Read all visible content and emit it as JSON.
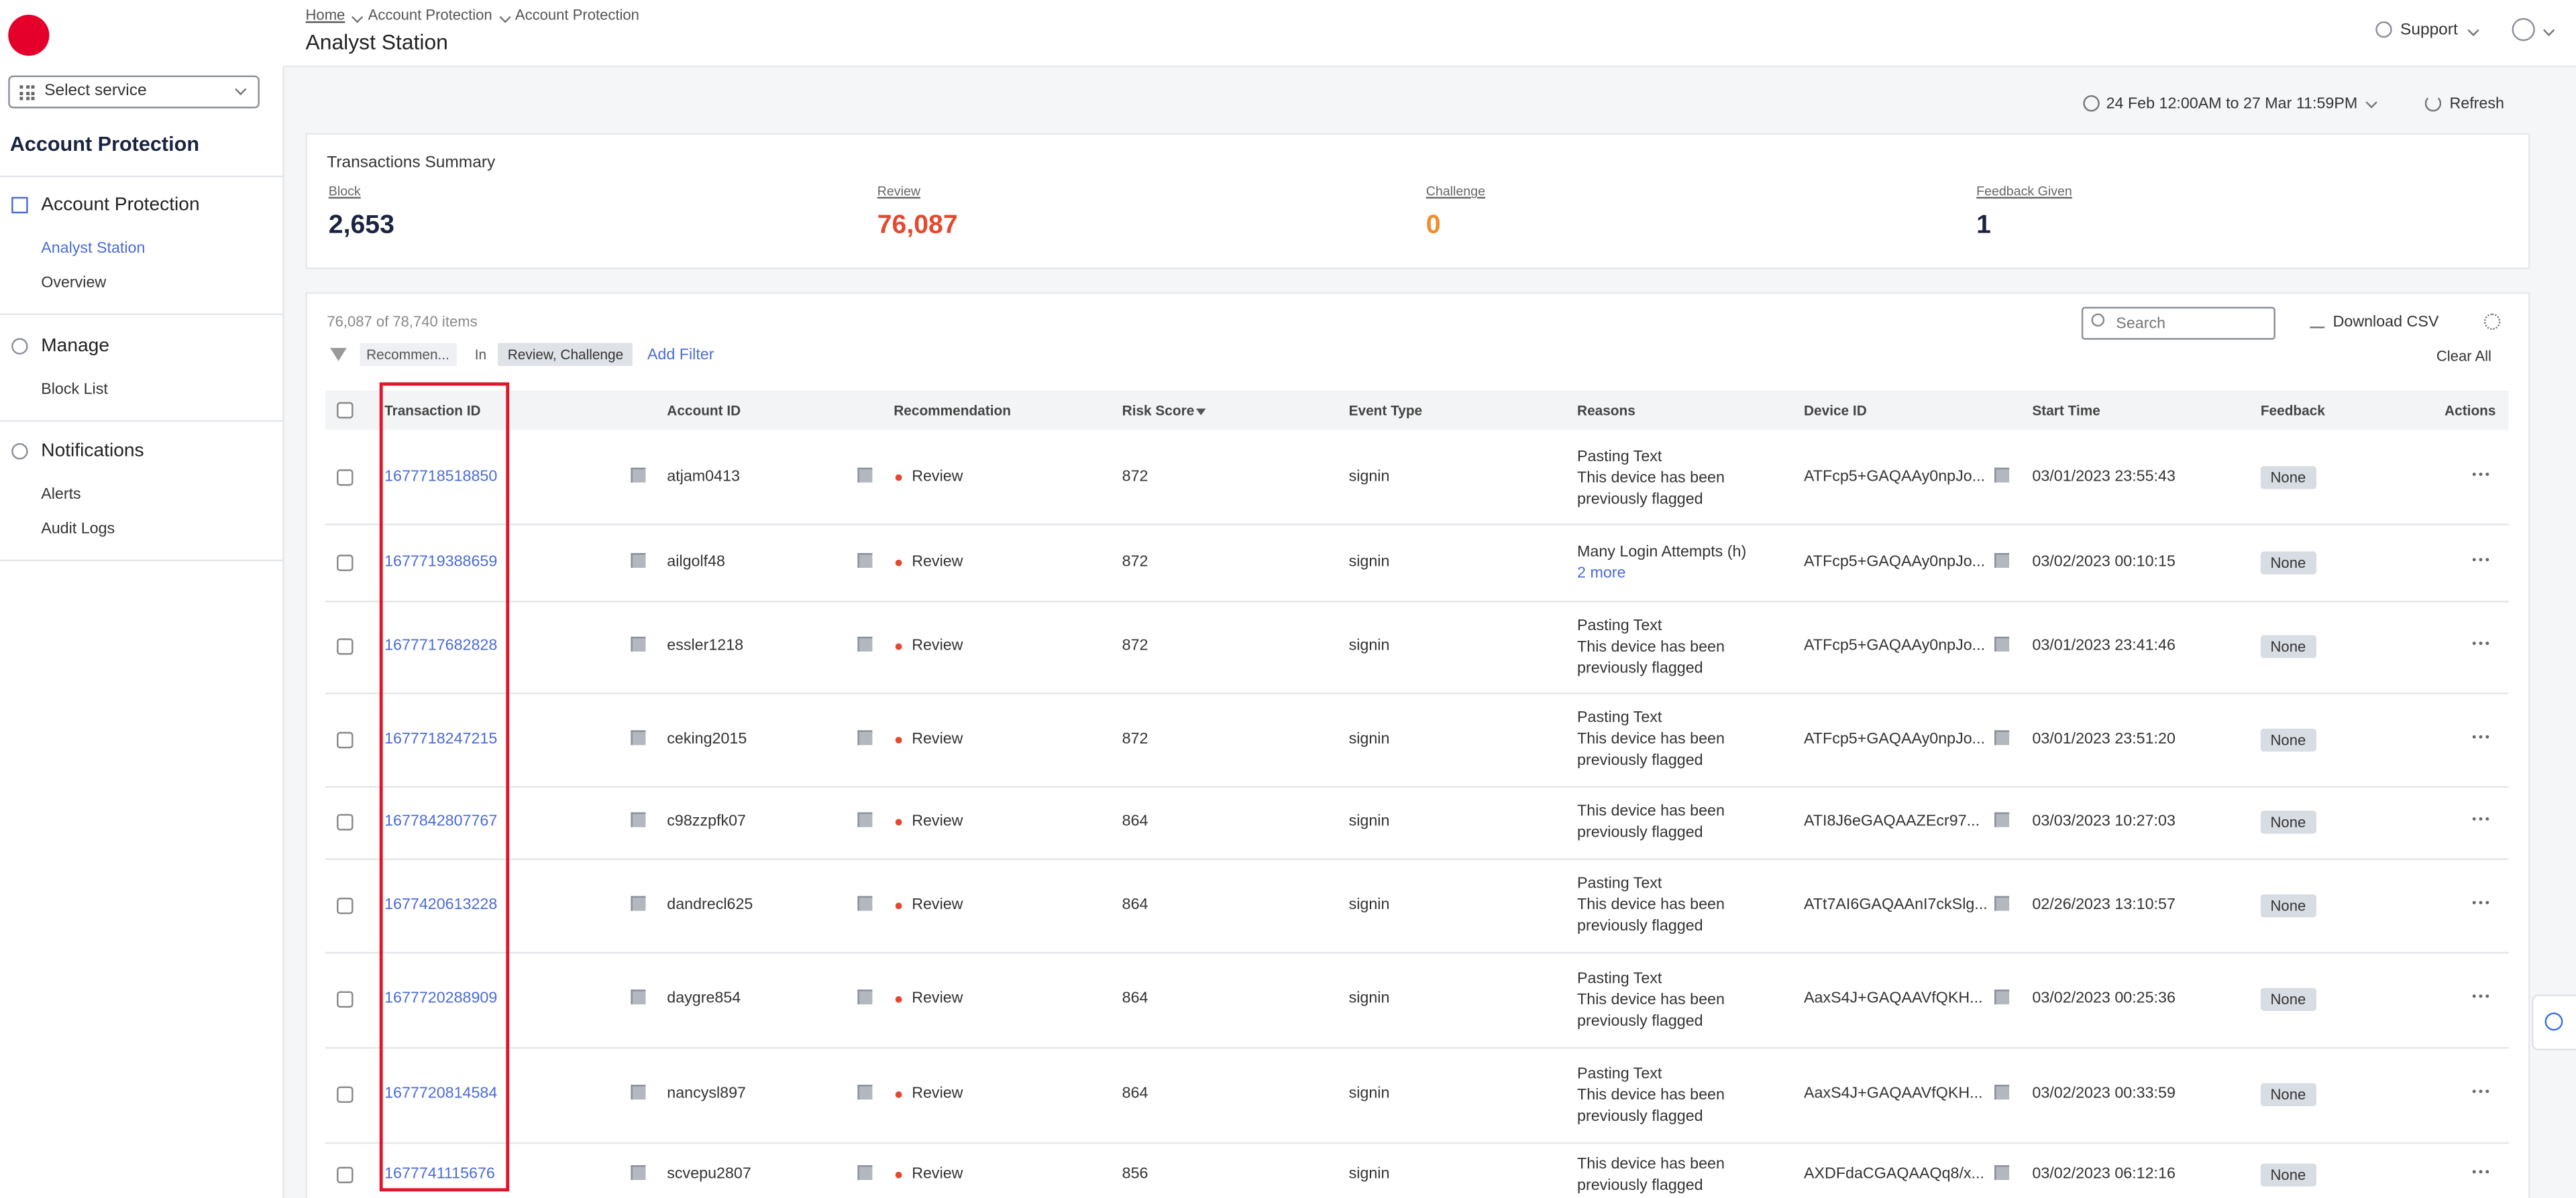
{
  "header": {
    "breadcrumbs": [
      "Home",
      "Account Protection",
      "Account Protection"
    ],
    "title": "Analyst Station",
    "support": "Support"
  },
  "sidebar": {
    "service_select": "Select service",
    "section_title": "Account Protection",
    "groups": [
      {
        "label": "Account Protection",
        "items": [
          "Analyst Station",
          "Overview"
        ]
      },
      {
        "label": "Manage",
        "items": [
          "Block List"
        ]
      },
      {
        "label": "Notifications",
        "items": [
          "Alerts",
          "Audit Logs"
        ]
      }
    ]
  },
  "toolbar": {
    "date_range": "24 Feb 12:00AM to 27 Mar 11:59PM",
    "refresh": "Refresh"
  },
  "summary": {
    "title": "Transactions Summary",
    "metrics": [
      {
        "label": "Block",
        "value": "2,653"
      },
      {
        "label": "Review",
        "value": "76,087"
      },
      {
        "label": "Challenge",
        "value": "0"
      },
      {
        "label": "Feedback Given",
        "value": "1"
      }
    ]
  },
  "table": {
    "count": "76,087 of 78,740 items",
    "filter": {
      "field": "Recommen...",
      "operator": "In",
      "value": "Review, Challenge"
    },
    "add_filter": "Add Filter",
    "search_placeholder": "Search",
    "download": "Download CSV",
    "clear_all": "Clear All",
    "columns": [
      "Transaction ID",
      "Account ID",
      "Recommendation",
      "Risk Score",
      "Event Type",
      "Reasons",
      "Device ID",
      "Start Time",
      "Feedback",
      "Actions"
    ],
    "rows": [
      {
        "transaction_id": "1677718518850",
        "account_id": "atjam0413",
        "recommendation": "Review",
        "risk_score": "872",
        "event_type": "signin",
        "reasons": [
          "Pasting Text",
          "This device has been previously flagged"
        ],
        "device_id": "ATFcp5+GAQAAy0npJo...",
        "start_time": "03/01/2023 23:55:43",
        "feedback": "None"
      },
      {
        "transaction_id": "1677719388659",
        "account_id": "ailgolf48",
        "recommendation": "Review",
        "risk_score": "872",
        "event_type": "signin",
        "reasons": [
          "Many Login Attempts (h)"
        ],
        "more": "2 more",
        "device_id": "ATFcp5+GAQAAy0npJo...",
        "start_time": "03/02/2023 00:10:15",
        "feedback": "None"
      },
      {
        "transaction_id": "1677717682828",
        "account_id": "essler1218",
        "recommendation": "Review",
        "risk_score": "872",
        "event_type": "signin",
        "reasons": [
          "Pasting Text",
          "This device has been previously flagged"
        ],
        "device_id": "ATFcp5+GAQAAy0npJo...",
        "start_time": "03/01/2023 23:41:46",
        "feedback": "None"
      },
      {
        "transaction_id": "1677718247215",
        "account_id": "ceking2015",
        "recommendation": "Review",
        "risk_score": "872",
        "event_type": "signin",
        "reasons": [
          "Pasting Text",
          "This device has been previously flagged"
        ],
        "device_id": "ATFcp5+GAQAAy0npJo...",
        "start_time": "03/01/2023 23:51:20",
        "feedback": "None"
      },
      {
        "transaction_id": "1677842807767",
        "account_id": "c98zzpfk07",
        "recommendation": "Review",
        "risk_score": "864",
        "event_type": "signin",
        "reasons": [
          "This device has been previously flagged"
        ],
        "device_id": "ATI8J6eGAQAAZEcr97...",
        "start_time": "03/03/2023 10:27:03",
        "feedback": "None"
      },
      {
        "transaction_id": "1677420613228",
        "account_id": "dandrecl625",
        "recommendation": "Review",
        "risk_score": "864",
        "event_type": "signin",
        "reasons": [
          "Pasting Text",
          "This device has been previously flagged"
        ],
        "device_id": "ATt7AI6GAQAAnI7ckSlg...",
        "start_time": "02/26/2023 13:10:57",
        "feedback": "None"
      },
      {
        "transaction_id": "1677720288909",
        "account_id": "daygre854",
        "recommendation": "Review",
        "risk_score": "864",
        "event_type": "signin",
        "reasons": [
          "Pasting Text",
          "This device has been previously flagged"
        ],
        "device_id": "AaxS4J+GAQAAVfQKH...",
        "start_time": "03/02/2023 00:25:36",
        "feedback": "None"
      },
      {
        "transaction_id": "1677720814584",
        "account_id": "nancysl897",
        "recommendation": "Review",
        "risk_score": "864",
        "event_type": "signin",
        "reasons": [
          "Pasting Text",
          "This device has been previously flagged"
        ],
        "device_id": "AaxS4J+GAQAAVfQKH...",
        "start_time": "03/02/2023 00:33:59",
        "feedback": "None"
      },
      {
        "transaction_id": "1677741115676",
        "account_id": "scvepu2807",
        "recommendation": "Review",
        "risk_score": "856",
        "event_type": "signin",
        "reasons": [
          "This device has been previously flagged"
        ],
        "device_id": "AXDFdaCGAQAAQq8/x...",
        "start_time": "03/02/2023 06:12:16",
        "feedback": "None"
      }
    ]
  }
}
